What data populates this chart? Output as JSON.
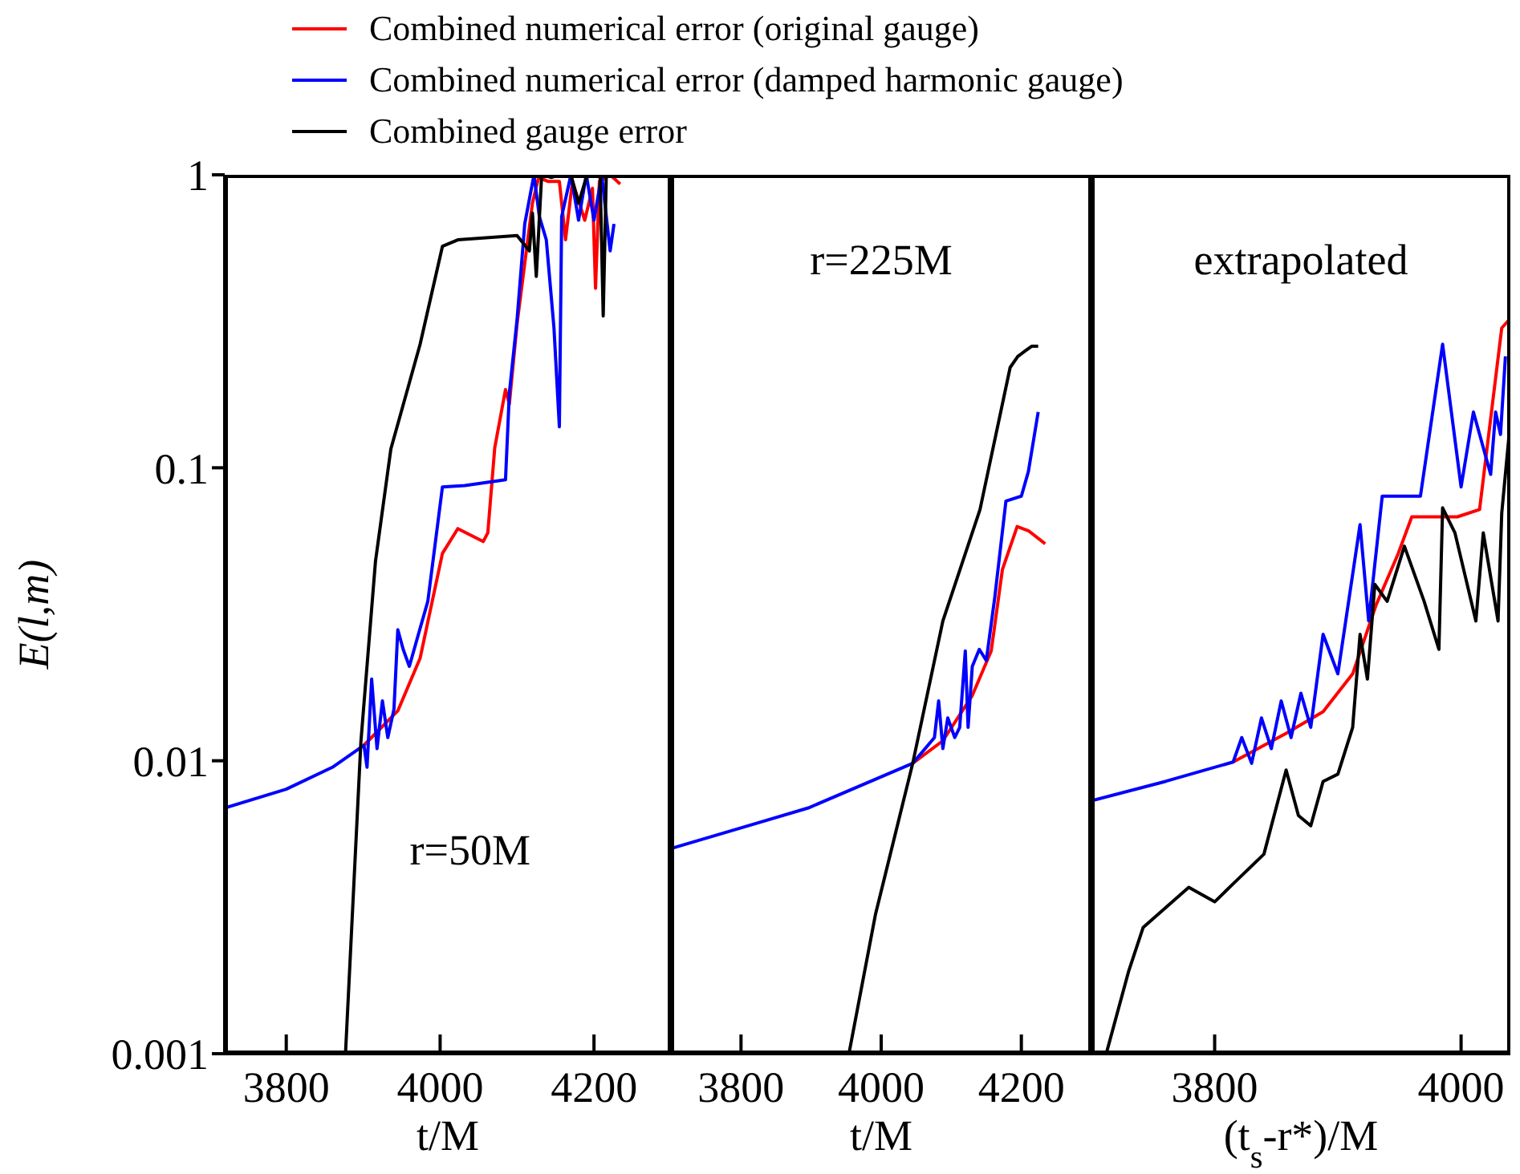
{
  "chart_data": [
    {
      "type": "line",
      "xlabel": "t/M",
      "ylabel": "E(l,m)",
      "log": "y",
      "xlim": [
        3720,
        4300
      ],
      "xticks": [
        3800,
        4000,
        4200
      ],
      "ylim": [
        0.001,
        1
      ],
      "yticks": [
        0.001,
        0.01,
        0.1,
        1
      ],
      "legend": "top",
      "annotations": [
        "r=50M"
      ],
      "series": [
        {
          "name": "Combined numerical error (original gauge)",
          "color": "#ff0000",
          "x": [
            3901,
            3945,
            3974,
            4003,
            4023,
            4056,
            4062,
            4071,
            4085,
            4090,
            4100,
            4120,
            4128,
            4140,
            4155,
            4163,
            4172,
            4188,
            4198,
            4202,
            4207,
            4221,
            4234
          ],
          "values": [
            0.0113,
            0.0148,
            0.0224,
            0.051,
            0.062,
            0.056,
            0.06,
            0.117,
            0.185,
            0.165,
            0.31,
            0.8,
            0.98,
            0.95,
            0.95,
            0.6,
            0.95,
            0.7,
            0.9,
            0.41,
            0.95,
            1.0,
            0.93
          ]
        },
        {
          "name": "Combined numerical error (damped harmonic gauge)",
          "color": "#0000ff",
          "x": [
            3720,
            3800,
            3860,
            3901,
            3905,
            3911,
            3918,
            3925,
            3932,
            3940,
            3945,
            3952,
            3960,
            3970,
            3984,
            4003,
            4032,
            4085,
            4090,
            4100,
            4110,
            4122,
            4129,
            4138,
            4148,
            4155,
            4158,
            4170,
            4180,
            4190,
            4200,
            4210,
            4221,
            4226
          ],
          "values": [
            0.0069,
            0.008,
            0.0095,
            0.0113,
            0.0095,
            0.019,
            0.011,
            0.016,
            0.012,
            0.015,
            0.028,
            0.024,
            0.021,
            0.026,
            0.035,
            0.086,
            0.087,
            0.091,
            0.18,
            0.32,
            0.68,
            1.0,
            0.72,
            0.6,
            0.3,
            0.138,
            0.72,
            1.0,
            0.7,
            1.0,
            0.7,
            1.0,
            0.55,
            0.68
          ]
        },
        {
          "name": "Combined gauge error",
          "color": "#000000",
          "x": [
            3877,
            3897,
            3916,
            3936,
            3974,
            4003,
            4023,
            4100,
            4116,
            4120,
            4125,
            4132,
            4145,
            4155,
            4170,
            4180,
            4190,
            4200,
            4208,
            4212,
            4216,
            4226
          ],
          "values": [
            0.001,
            0.0116,
            0.048,
            0.116,
            0.264,
            0.57,
            0.6,
            0.62,
            0.55,
            0.74,
            0.45,
            1.0,
            0.98,
            1.0,
            1.0,
            0.8,
            0.98,
            1.0,
            0.98,
            0.33,
            1.0,
            1.0
          ]
        }
      ]
    },
    {
      "type": "line",
      "xlabel": "t/M",
      "log": "y",
      "xlim": [
        3700,
        4300
      ],
      "xticks": [
        3800,
        4000,
        4200
      ],
      "ylim": [
        0.001,
        1
      ],
      "yticks": [
        0.001,
        0.01,
        0.1,
        1
      ],
      "tick_labels": "x",
      "annotations": [
        "r=225M"
      ],
      "series": [
        {
          "color": "#ff0000",
          "x": [
            4045,
            4088,
            4130,
            4157,
            4173,
            4194,
            4210,
            4234
          ],
          "values": [
            0.0098,
            0.0117,
            0.0167,
            0.0237,
            0.045,
            0.063,
            0.061,
            0.055
          ]
        },
        {
          "color": "#0000ff",
          "x": [
            3704,
            3800,
            3896,
            4045,
            4076,
            4082,
            4088,
            4095,
            4105,
            4112,
            4120,
            4124,
            4130,
            4140,
            4150,
            4162,
            4178,
            4200,
            4210,
            4224
          ],
          "values": [
            0.00505,
            0.0059,
            0.0069,
            0.0098,
            0.012,
            0.016,
            0.011,
            0.014,
            0.012,
            0.013,
            0.0237,
            0.013,
            0.021,
            0.024,
            0.022,
            0.036,
            0.077,
            0.08,
            0.097,
            0.155
          ]
        },
        {
          "color": "#000000",
          "x": [
            3954,
            3992,
            4045,
            4088,
            4141,
            4184,
            4195,
            4205,
            4215,
            4224
          ],
          "values": [
            0.001,
            0.003,
            0.0098,
            0.03,
            0.072,
            0.22,
            0.24,
            0.25,
            0.26,
            0.26
          ]
        }
      ]
    },
    {
      "type": "line",
      "xlabel": "(t$_{s}$-r*)/M",
      "log": "y",
      "xlim": [
        3700,
        4040
      ],
      "xticks": [
        3800,
        4000
      ],
      "ylim": [
        0.001,
        1
      ],
      "yticks": [
        0.001,
        0.01,
        0.1,
        1
      ],
      "tick_labels": "x",
      "annotations": [
        "extrapolated"
      ],
      "series": [
        {
          "color": "#ff0000",
          "x": [
            3815,
            3858,
            3888,
            3912,
            3931,
            3949,
            3960,
            3979,
            3997,
            4015,
            4021,
            4033,
            4039
          ],
          "values": [
            0.0099,
            0.0124,
            0.0147,
            0.0198,
            0.034,
            0.051,
            0.068,
            0.068,
            0.068,
            0.072,
            0.116,
            0.3,
            0.32
          ]
        },
        {
          "color": "#0000ff",
          "x": [
            3700,
            3760,
            3815,
            3822,
            3830,
            3838,
            3846,
            3854,
            3862,
            3870,
            3878,
            3888,
            3900,
            3918,
            3925,
            3936,
            3950,
            3967,
            3985,
            4000,
            4010,
            4024,
            4028,
            4032,
            4036
          ],
          "values": [
            0.0073,
            0.0085,
            0.0099,
            0.012,
            0.0098,
            0.014,
            0.011,
            0.016,
            0.012,
            0.017,
            0.013,
            0.027,
            0.0198,
            0.064,
            0.03,
            0.08,
            0.08,
            0.08,
            0.264,
            0.086,
            0.155,
            0.095,
            0.155,
            0.13,
            0.24
          ]
        },
        {
          "color": "#000000",
          "x": [
            3712,
            3730,
            3742,
            3779,
            3800,
            3815,
            3840,
            3858,
            3868,
            3878,
            3888,
            3900,
            3912,
            3918,
            3924,
            3930,
            3940,
            3954,
            3970,
            3982,
            3985,
            3995,
            4012,
            4018,
            4030,
            4033,
            4039
          ],
          "values": [
            0.001,
            0.0019,
            0.0027,
            0.0037,
            0.0033,
            0.0038,
            0.0048,
            0.0093,
            0.0065,
            0.006,
            0.0085,
            0.009,
            0.013,
            0.027,
            0.019,
            0.04,
            0.035,
            0.054,
            0.035,
            0.024,
            0.073,
            0.06,
            0.03,
            0.06,
            0.03,
            0.07,
            0.13
          ]
        }
      ]
    }
  ]
}
